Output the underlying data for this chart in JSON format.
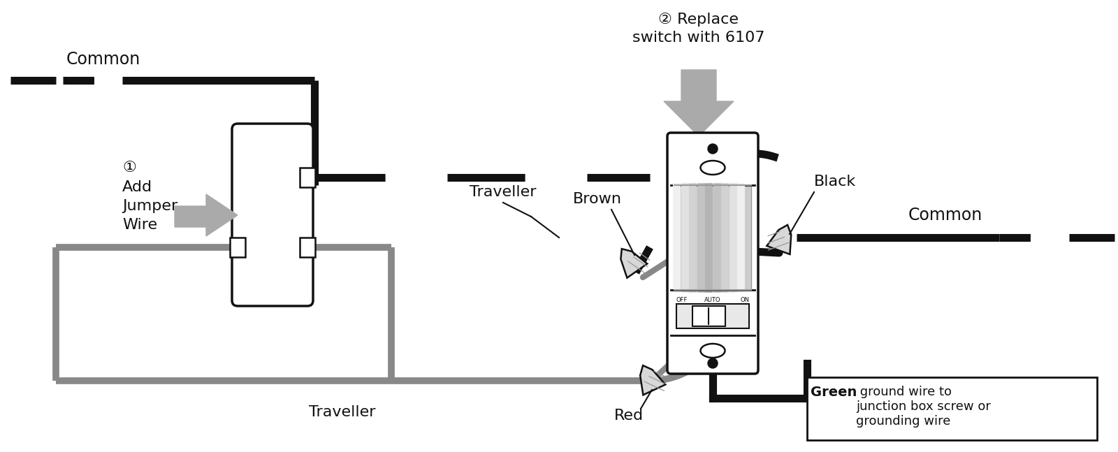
{
  "bg_color": "#ffffff",
  "black_color": "#111111",
  "gray_color": "#888888",
  "light_gray": "#aaaaaa",
  "text_color": "#111111",
  "labels": {
    "common_left": "Common",
    "common_right": "Common",
    "traveller_top": "Traveller",
    "traveller_bottom": "Traveller",
    "add_jumper_1": "①",
    "add_jumper_2": "Add",
    "add_jumper_3": "Jumper",
    "add_jumper_4": "Wire",
    "replace_switch": "② Replace\nswitch with 6107",
    "brown": "Brown",
    "black_wire": "Black",
    "red": "Red",
    "green_bold": "Green",
    "green_note": " ground wire to\njunction box screw or\ngrounding wire"
  },
  "figsize": [
    16.0,
    6.47
  ],
  "dpi": 100
}
